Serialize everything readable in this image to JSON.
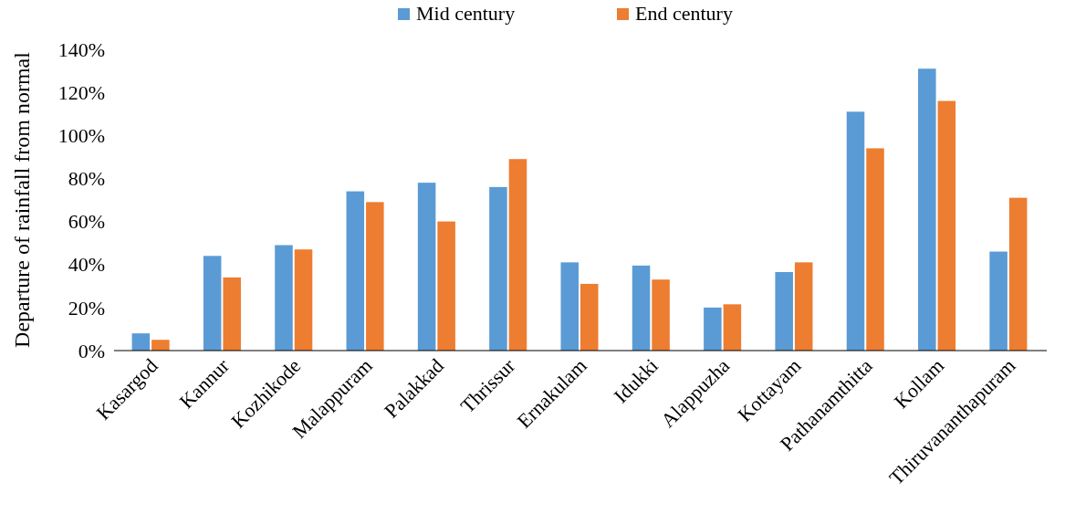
{
  "chart_data": {
    "type": "bar",
    "ylabel": "Departure of rainfall from normal",
    "categories": [
      "Kasargod",
      "Kannur",
      "Kozhikode",
      "Malappuram",
      "Palakkad",
      "Thrissur",
      "Ernakulam",
      "Idukki",
      "Alappuzha",
      "Kottayam",
      "Pathanamthitta",
      "Kollam",
      "Thiruvananthapuram"
    ],
    "series": [
      {
        "name": "Mid century",
        "color": "#5b9bd5",
        "values": [
          8,
          44,
          49,
          74,
          78,
          76,
          41,
          39.5,
          20,
          36.5,
          111,
          131,
          46
        ]
      },
      {
        "name": "End century",
        "color": "#ed7d31",
        "values": [
          5,
          34,
          47,
          69,
          60,
          89,
          31,
          33,
          21.5,
          41,
          94,
          116,
          71
        ]
      }
    ],
    "ylim": [
      0,
      140
    ],
    "yticks": [
      {
        "value": 0,
        "label": "0%"
      },
      {
        "value": 20,
        "label": "20%"
      },
      {
        "value": 40,
        "label": "40%"
      },
      {
        "value": 60,
        "label": "60%"
      },
      {
        "value": 80,
        "label": "80%"
      },
      {
        "value": 100,
        "label": "100%"
      },
      {
        "value": 120,
        "label": "120%"
      },
      {
        "value": 140,
        "label": "140%"
      }
    ],
    "grid": false,
    "legend": "top"
  }
}
